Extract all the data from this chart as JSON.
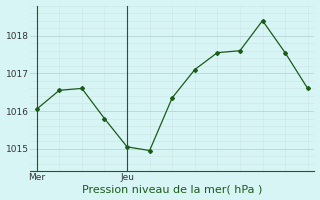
{
  "x": [
    0,
    1,
    2,
    3,
    4,
    5,
    6,
    7,
    8,
    9,
    10,
    11,
    12
  ],
  "y": [
    1016.05,
    1016.55,
    1016.6,
    1015.8,
    1015.05,
    1014.95,
    1016.35,
    1017.1,
    1017.55,
    1017.6,
    1018.4,
    1017.55,
    1016.6
  ],
  "line_color": "#1a5c1a",
  "marker_color": "#1a5c1a",
  "bg_color": "#d8f5f5",
  "grid_color_major": "#b8d4d4",
  "grid_color_minor": "#cce4e4",
  "xlabel": "Pression niveau de la mer( hPa )",
  "xtick_labels_pos": [
    0,
    4
  ],
  "xtick_labels_text": [
    "Mer",
    "Jeu"
  ],
  "yticks": [
    1015,
    1016,
    1017,
    1018
  ],
  "ylim": [
    1014.4,
    1018.8
  ],
  "xlim": [
    -0.3,
    12.3
  ],
  "ver_line_x": [
    0,
    4
  ],
  "tick_fontsize": 6.5,
  "xlabel_fontsize": 8
}
